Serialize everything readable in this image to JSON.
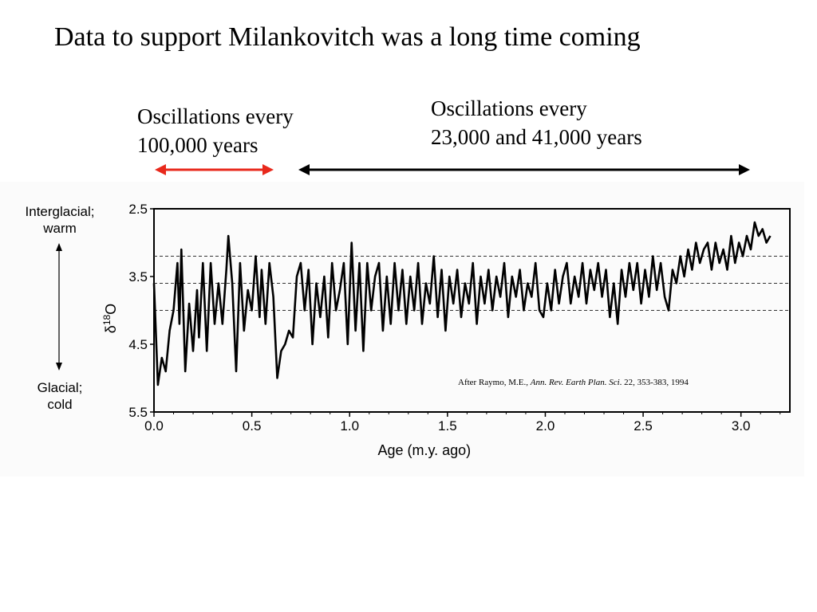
{
  "slide": {
    "title": "Data to support Milankovitch was a long time coming",
    "osc_100k": {
      "line1": "Oscillations every",
      "line2": "100,000 years",
      "arrow_color": "#e8291c"
    },
    "osc_23k": {
      "line1": "Oscillations every",
      "line2": "23,000 and 41,000 years",
      "arrow_color": "#000000"
    }
  },
  "figure": {
    "top_label": {
      "line1": "Interglacial;",
      "line2": "warm"
    },
    "bottom_label": {
      "line1": "Glacial;",
      "line2": "cold"
    },
    "citation": {
      "prefix": "After Raymo, M.E., ",
      "journal": "Ann. Rev. Earth Plan. Sci",
      "suffix": ". 22, 353-383, 1994"
    }
  },
  "chart_data": {
    "type": "line",
    "xlabel": "Age (m.y. ago)",
    "ylabel": "δ18O",
    "xlim": [
      0.0,
      3.25
    ],
    "ylim": [
      2.5,
      5.5
    ],
    "y_inverted": true,
    "xticks": [
      "0.0",
      "0.5",
      "1.0",
      "1.5",
      "2.0",
      "2.5",
      "3.0"
    ],
    "yticks": [
      "2.5",
      "3.5",
      "4.5",
      "5.5"
    ],
    "reference_lines": [
      3.2,
      3.6,
      4.0
    ],
    "grid": false,
    "series": [
      {
        "color": "#000000",
        "points": [
          [
            0.0,
            3.6
          ],
          [
            0.02,
            5.1
          ],
          [
            0.04,
            4.7
          ],
          [
            0.06,
            4.9
          ],
          [
            0.08,
            4.3
          ],
          [
            0.1,
            4.0
          ],
          [
            0.12,
            3.3
          ],
          [
            0.13,
            4.2
          ],
          [
            0.14,
            3.1
          ],
          [
            0.16,
            4.9
          ],
          [
            0.18,
            3.9
          ],
          [
            0.2,
            4.6
          ],
          [
            0.22,
            3.7
          ],
          [
            0.23,
            4.4
          ],
          [
            0.25,
            3.3
          ],
          [
            0.27,
            4.6
          ],
          [
            0.29,
            3.3
          ],
          [
            0.31,
            4.2
          ],
          [
            0.33,
            3.6
          ],
          [
            0.35,
            4.2
          ],
          [
            0.37,
            3.4
          ],
          [
            0.38,
            2.9
          ],
          [
            0.4,
            3.6
          ],
          [
            0.42,
            4.9
          ],
          [
            0.44,
            3.3
          ],
          [
            0.46,
            4.3
          ],
          [
            0.48,
            3.7
          ],
          [
            0.5,
            4.0
          ],
          [
            0.52,
            3.2
          ],
          [
            0.54,
            4.1
          ],
          [
            0.55,
            3.4
          ],
          [
            0.57,
            4.2
          ],
          [
            0.59,
            3.3
          ],
          [
            0.61,
            3.8
          ],
          [
            0.63,
            5.0
          ],
          [
            0.65,
            4.6
          ],
          [
            0.67,
            4.5
          ],
          [
            0.69,
            4.3
          ],
          [
            0.71,
            4.4
          ],
          [
            0.73,
            3.5
          ],
          [
            0.75,
            3.3
          ],
          [
            0.77,
            4.0
          ],
          [
            0.79,
            3.4
          ],
          [
            0.81,
            4.5
          ],
          [
            0.83,
            3.6
          ],
          [
            0.85,
            4.1
          ],
          [
            0.87,
            3.5
          ],
          [
            0.89,
            4.4
          ],
          [
            0.91,
            3.3
          ],
          [
            0.93,
            4.0
          ],
          [
            0.95,
            3.7
          ],
          [
            0.97,
            3.3
          ],
          [
            0.99,
            4.5
          ],
          [
            1.01,
            3.0
          ],
          [
            1.03,
            4.3
          ],
          [
            1.05,
            3.3
          ],
          [
            1.07,
            4.6
          ],
          [
            1.09,
            3.3
          ],
          [
            1.11,
            4.0
          ],
          [
            1.13,
            3.5
          ],
          [
            1.15,
            3.3
          ],
          [
            1.17,
            4.3
          ],
          [
            1.19,
            3.5
          ],
          [
            1.21,
            4.2
          ],
          [
            1.23,
            3.3
          ],
          [
            1.25,
            4.0
          ],
          [
            1.27,
            3.4
          ],
          [
            1.29,
            4.2
          ],
          [
            1.31,
            3.5
          ],
          [
            1.33,
            4.0
          ],
          [
            1.35,
            3.3
          ],
          [
            1.37,
            4.2
          ],
          [
            1.39,
            3.6
          ],
          [
            1.41,
            3.9
          ],
          [
            1.43,
            3.2
          ],
          [
            1.45,
            4.1
          ],
          [
            1.47,
            3.4
          ],
          [
            1.49,
            4.3
          ],
          [
            1.51,
            3.5
          ],
          [
            1.53,
            3.9
          ],
          [
            1.55,
            3.4
          ],
          [
            1.57,
            4.1
          ],
          [
            1.59,
            3.6
          ],
          [
            1.61,
            3.9
          ],
          [
            1.63,
            3.3
          ],
          [
            1.65,
            4.2
          ],
          [
            1.67,
            3.5
          ],
          [
            1.69,
            3.9
          ],
          [
            1.71,
            3.4
          ],
          [
            1.73,
            4.0
          ],
          [
            1.75,
            3.5
          ],
          [
            1.77,
            3.8
          ],
          [
            1.79,
            3.3
          ],
          [
            1.81,
            4.1
          ],
          [
            1.83,
            3.5
          ],
          [
            1.85,
            3.8
          ],
          [
            1.87,
            3.4
          ],
          [
            1.89,
            4.0
          ],
          [
            1.91,
            3.6
          ],
          [
            1.93,
            3.8
          ],
          [
            1.95,
            3.3
          ],
          [
            1.97,
            4.0
          ],
          [
            1.99,
            4.1
          ],
          [
            2.01,
            3.6
          ],
          [
            2.03,
            4.0
          ],
          [
            2.05,
            3.4
          ],
          [
            2.07,
            3.9
          ],
          [
            2.09,
            3.5
          ],
          [
            2.11,
            3.3
          ],
          [
            2.13,
            3.9
          ],
          [
            2.15,
            3.5
          ],
          [
            2.17,
            3.8
          ],
          [
            2.19,
            3.3
          ],
          [
            2.21,
            3.9
          ],
          [
            2.23,
            3.4
          ],
          [
            2.25,
            3.7
          ],
          [
            2.27,
            3.3
          ],
          [
            2.29,
            3.8
          ],
          [
            2.31,
            3.4
          ],
          [
            2.33,
            4.1
          ],
          [
            2.35,
            3.6
          ],
          [
            2.37,
            4.2
          ],
          [
            2.39,
            3.4
          ],
          [
            2.41,
            3.8
          ],
          [
            2.43,
            3.3
          ],
          [
            2.45,
            3.7
          ],
          [
            2.47,
            3.3
          ],
          [
            2.49,
            3.9
          ],
          [
            2.51,
            3.4
          ],
          [
            2.53,
            3.8
          ],
          [
            2.55,
            3.2
          ],
          [
            2.57,
            3.7
          ],
          [
            2.59,
            3.3
          ],
          [
            2.61,
            3.8
          ],
          [
            2.63,
            4.0
          ],
          [
            2.65,
            3.4
          ],
          [
            2.67,
            3.6
          ],
          [
            2.69,
            3.2
          ],
          [
            2.71,
            3.5
          ],
          [
            2.73,
            3.1
          ],
          [
            2.75,
            3.4
          ],
          [
            2.77,
            3.0
          ],
          [
            2.79,
            3.3
          ],
          [
            2.81,
            3.1
          ],
          [
            2.83,
            3.0
          ],
          [
            2.85,
            3.4
          ],
          [
            2.87,
            3.0
          ],
          [
            2.89,
            3.3
          ],
          [
            2.91,
            3.1
          ],
          [
            2.93,
            3.4
          ],
          [
            2.95,
            2.9
          ],
          [
            2.97,
            3.3
          ],
          [
            2.99,
            3.0
          ],
          [
            3.01,
            3.2
          ],
          [
            3.03,
            2.9
          ],
          [
            3.05,
            3.1
          ],
          [
            3.07,
            2.7
          ],
          [
            3.09,
            2.9
          ],
          [
            3.11,
            2.8
          ],
          [
            3.13,
            3.0
          ],
          [
            3.15,
            2.9
          ]
        ]
      }
    ]
  }
}
